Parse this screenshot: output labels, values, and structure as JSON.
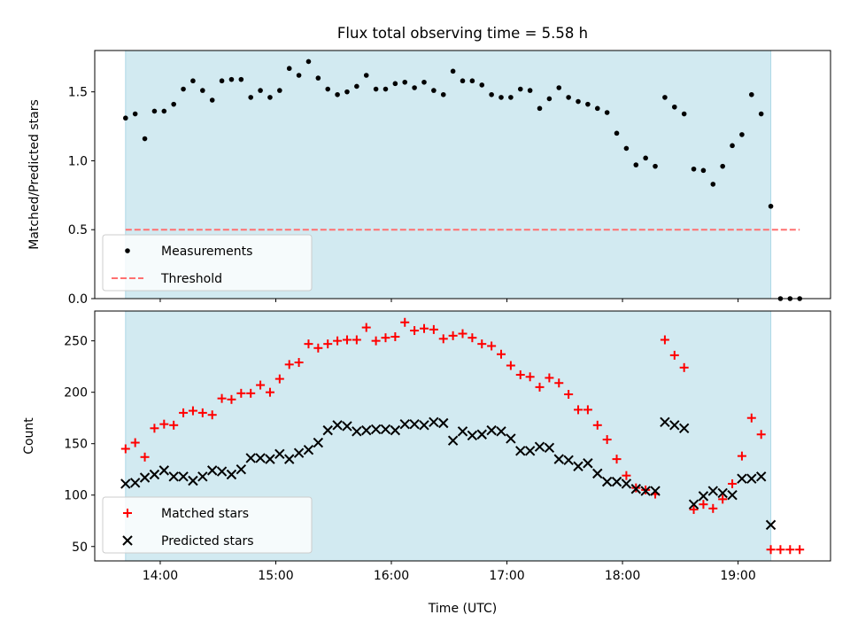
{
  "chart_data": [
    {
      "type": "scatter",
      "title": "Flux total observing time = 5.58 h",
      "xlabel": "",
      "ylabel": "Matched/Predicted stars",
      "xlim": [
        "13:26",
        "19:48"
      ],
      "ylim": [
        0,
        1.8
      ],
      "yticks": [
        0.0,
        0.5,
        1.0,
        1.5
      ],
      "ytick_labels": [
        "0.0",
        "0.5",
        "1.0",
        "1.5"
      ],
      "grid": false,
      "legend_position": "lower-left",
      "observing_window": [
        "13:42",
        "19:17"
      ],
      "shade_color": "#add8e6",
      "series": [
        {
          "name": "Measurements",
          "color": "#000000",
          "marker": "dot",
          "x": [
            "13:42",
            "13:47",
            "13:52",
            "13:57",
            "14:02",
            "14:07",
            "14:12",
            "14:17",
            "14:22",
            "14:27",
            "14:32",
            "14:37",
            "14:42",
            "14:47",
            "14:52",
            "14:57",
            "15:02",
            "15:07",
            "15:12",
            "15:17",
            "15:22",
            "15:27",
            "15:32",
            "15:37",
            "15:42",
            "15:47",
            "15:52",
            "15:57",
            "16:02",
            "16:07",
            "16:12",
            "16:17",
            "16:22",
            "16:27",
            "16:32",
            "16:37",
            "16:42",
            "16:47",
            "16:52",
            "16:57",
            "17:02",
            "17:07",
            "17:12",
            "17:17",
            "17:22",
            "17:27",
            "17:32",
            "17:37",
            "17:42",
            "17:47",
            "17:52",
            "17:57",
            "18:02",
            "18:07",
            "18:12",
            "18:17",
            "18:22",
            "18:27",
            "18:32",
            "18:37",
            "18:42",
            "18:47",
            "18:52",
            "18:57",
            "19:02",
            "19:07",
            "19:12",
            "19:17",
            "19:22",
            "19:27",
            "19:32"
          ],
          "y": [
            1.31,
            1.34,
            1.16,
            1.36,
            1.36,
            1.41,
            1.52,
            1.58,
            1.51,
            1.44,
            1.58,
            1.59,
            1.59,
            1.46,
            1.51,
            1.46,
            1.51,
            1.67,
            1.62,
            1.72,
            1.6,
            1.52,
            1.48,
            1.5,
            1.54,
            1.62,
            1.52,
            1.52,
            1.56,
            1.57,
            1.53,
            1.57,
            1.51,
            1.48,
            1.65,
            1.58,
            1.58,
            1.55,
            1.48,
            1.46,
            1.46,
            1.52,
            1.51,
            1.38,
            1.45,
            1.53,
            1.46,
            1.43,
            1.41,
            1.38,
            1.35,
            1.2,
            1.09,
            0.97,
            1.02,
            0.96,
            1.46,
            1.39,
            1.34,
            0.94,
            0.93,
            0.83,
            0.96,
            1.11,
            1.19,
            1.48,
            1.34,
            0.67,
            0.0,
            0.0,
            0.0
          ]
        },
        {
          "name": "Threshold",
          "color": "#ff7070",
          "style": "dashed",
          "x": [
            "13:42",
            "19:32"
          ],
          "y": [
            0.5,
            0.5
          ]
        }
      ]
    },
    {
      "type": "scatter",
      "title": "",
      "xlabel": "Time (UTC)",
      "ylabel": "Count",
      "xlim": [
        "13:26",
        "19:48"
      ],
      "ylim": [
        36,
        279
      ],
      "yticks": [
        50,
        100,
        150,
        200,
        250
      ],
      "ytick_labels": [
        "50",
        "100",
        "150",
        "200",
        "250"
      ],
      "xticks": [
        "14:00",
        "15:00",
        "16:00",
        "17:00",
        "18:00",
        "19:00"
      ],
      "xtick_labels": [
        "14:00",
        "15:00",
        "16:00",
        "17:00",
        "18:00",
        "19:00"
      ],
      "grid": false,
      "legend_position": "lower-left",
      "observing_window": [
        "13:42",
        "19:17"
      ],
      "shade_color": "#add8e6",
      "series": [
        {
          "name": "Matched stars",
          "color": "#ff0000",
          "marker": "plus",
          "x": [
            "13:42",
            "13:47",
            "13:52",
            "13:57",
            "14:02",
            "14:07",
            "14:12",
            "14:17",
            "14:22",
            "14:27",
            "14:32",
            "14:37",
            "14:42",
            "14:47",
            "14:52",
            "14:57",
            "15:02",
            "15:07",
            "15:12",
            "15:17",
            "15:22",
            "15:27",
            "15:32",
            "15:37",
            "15:42",
            "15:47",
            "15:52",
            "15:57",
            "16:02",
            "16:07",
            "16:12",
            "16:17",
            "16:22",
            "16:27",
            "16:32",
            "16:37",
            "16:42",
            "16:47",
            "16:52",
            "16:57",
            "17:02",
            "17:07",
            "17:12",
            "17:17",
            "17:22",
            "17:27",
            "17:32",
            "17:37",
            "17:42",
            "17:47",
            "17:52",
            "17:57",
            "18:02",
            "18:07",
            "18:12",
            "18:17",
            "18:22",
            "18:27",
            "18:32",
            "18:37",
            "18:42",
            "18:47",
            "18:52",
            "18:57",
            "19:02",
            "19:07",
            "19:12",
            "19:17",
            "19:22",
            "19:27",
            "19:32"
          ],
          "y": [
            145,
            151,
            137,
            165,
            169,
            168,
            180,
            182,
            180,
            178,
            194,
            193,
            199,
            199,
            207,
            200,
            213,
            227,
            229,
            247,
            243,
            247,
            250,
            251,
            251,
            263,
            250,
            253,
            254,
            268,
            260,
            262,
            261,
            252,
            255,
            257,
            253,
            247,
            245,
            237,
            226,
            217,
            215,
            205,
            214,
            209,
            198,
            183,
            183,
            168,
            154,
            135,
            119,
            107,
            105,
            101,
            251,
            236,
            224,
            86,
            91,
            87,
            96,
            111,
            138,
            175,
            159,
            47,
            47,
            47,
            47
          ]
        },
        {
          "name": "Predicted stars",
          "color": "#000000",
          "marker": "x",
          "x": [
            "13:42",
            "13:47",
            "13:52",
            "13:57",
            "14:02",
            "14:07",
            "14:12",
            "14:17",
            "14:22",
            "14:27",
            "14:32",
            "14:37",
            "14:42",
            "14:47",
            "14:52",
            "14:57",
            "15:02",
            "15:07",
            "15:12",
            "15:17",
            "15:22",
            "15:27",
            "15:32",
            "15:37",
            "15:42",
            "15:47",
            "15:52",
            "15:57",
            "16:02",
            "16:07",
            "16:12",
            "16:17",
            "16:22",
            "16:27",
            "16:32",
            "16:37",
            "16:42",
            "16:47",
            "16:52",
            "16:57",
            "17:02",
            "17:07",
            "17:12",
            "17:17",
            "17:22",
            "17:27",
            "17:32",
            "17:37",
            "17:42",
            "17:47",
            "17:52",
            "17:57",
            "18:02",
            "18:07",
            "18:12",
            "18:17",
            "18:22",
            "18:27",
            "18:32",
            "18:37",
            "18:42",
            "18:47",
            "18:52",
            "18:57",
            "19:02",
            "19:07",
            "19:12",
            "19:17"
          ],
          "y": [
            111,
            112,
            117,
            120,
            124,
            118,
            118,
            114,
            118,
            124,
            123,
            120,
            125,
            136,
            136,
            135,
            140,
            135,
            141,
            144,
            151,
            163,
            168,
            167,
            162,
            163,
            164,
            164,
            163,
            169,
            169,
            168,
            171,
            170,
            153,
            162,
            158,
            159,
            163,
            162,
            155,
            143,
            143,
            147,
            146,
            135,
            134,
            128,
            131,
            121,
            113,
            113,
            111,
            106,
            104,
            104,
            171,
            168,
            165,
            91,
            99,
            104,
            102,
            100,
            116,
            116,
            118,
            71
          ]
        }
      ]
    }
  ]
}
